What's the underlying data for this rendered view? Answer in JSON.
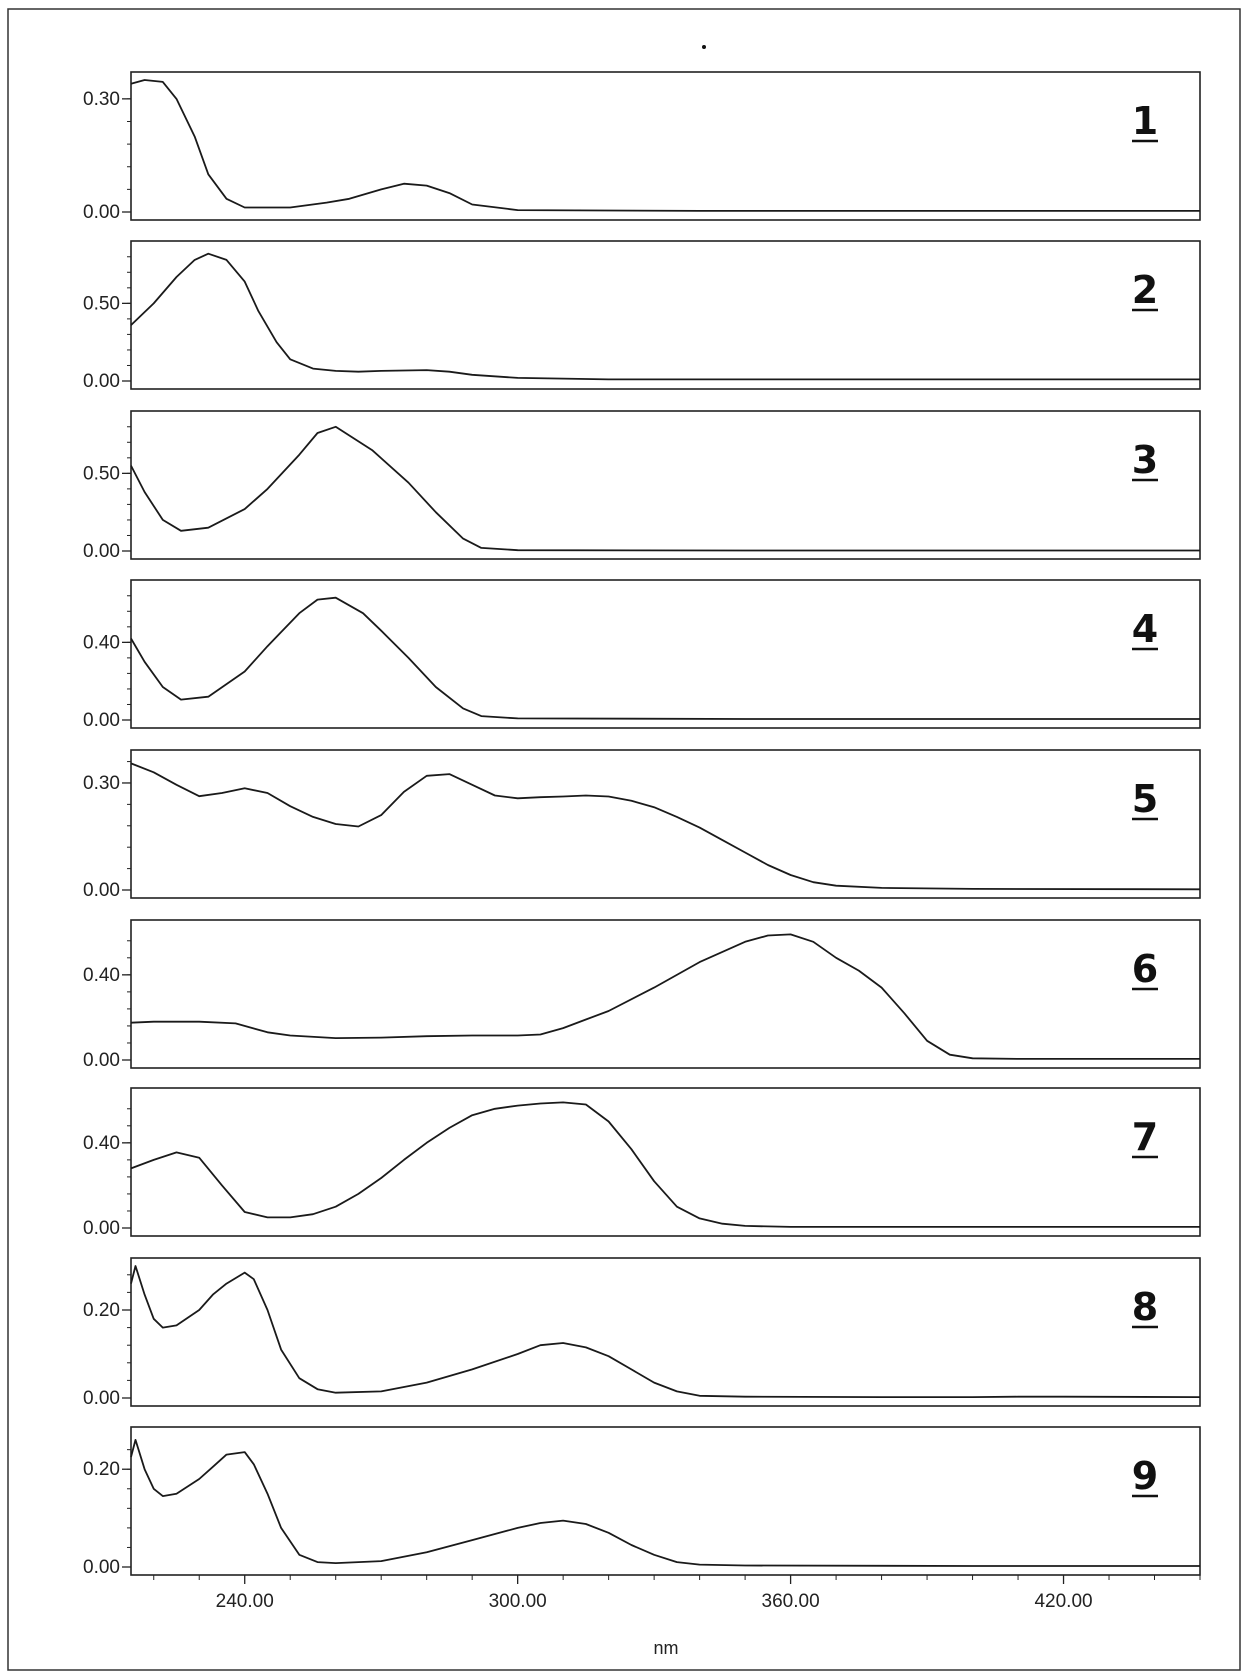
{
  "chart_data": {
    "type": "line",
    "xlabel": "nm",
    "x_ticks": [
      240,
      300,
      360,
      420
    ],
    "x_tick_labels": [
      "240.00",
      "300.00",
      "360.00",
      "420.00"
    ],
    "xlim": [
      215,
      450
    ],
    "grid": false,
    "panels": [
      {
        "label": "1",
        "ylim": [
          0,
          0.35
        ],
        "y_ticks": [
          0,
          0.3
        ],
        "y_tick_labels": [
          "0.00",
          "0.30"
        ],
        "x": [
          215,
          218,
          222,
          225,
          229,
          232,
          236,
          240,
          250,
          258,
          263,
          270,
          275,
          280,
          285,
          290,
          300,
          340,
          400,
          450
        ],
        "y": [
          0.34,
          0.35,
          0.345,
          0.3,
          0.2,
          0.1,
          0.035,
          0.012,
          0.012,
          0.025,
          0.035,
          0.06,
          0.075,
          0.07,
          0.05,
          0.02,
          0.005,
          0.003,
          0.003,
          0.003
        ]
      },
      {
        "label": "2",
        "ylim": [
          0,
          0.85
        ],
        "y_ticks": [
          0,
          0.5
        ],
        "y_tick_labels": [
          "0.00",
          "0.50"
        ],
        "x": [
          215,
          220,
          225,
          229,
          232,
          236,
          240,
          243,
          247,
          250,
          255,
          260,
          265,
          270,
          280,
          285,
          290,
          300,
          320,
          400,
          450
        ],
        "y": [
          0.36,
          0.5,
          0.67,
          0.78,
          0.82,
          0.78,
          0.64,
          0.45,
          0.25,
          0.14,
          0.08,
          0.065,
          0.06,
          0.065,
          0.07,
          0.06,
          0.04,
          0.02,
          0.01,
          0.01,
          0.01
        ]
      },
      {
        "label": "3",
        "ylim": [
          0,
          0.85
        ],
        "y_ticks": [
          0,
          0.5
        ],
        "y_tick_labels": [
          "0.00",
          "0.50"
        ],
        "x": [
          215,
          218,
          222,
          226,
          232,
          240,
          245,
          252,
          256,
          260,
          268,
          276,
          282,
          288,
          292,
          300,
          350,
          450
        ],
        "y": [
          0.55,
          0.38,
          0.2,
          0.13,
          0.15,
          0.27,
          0.4,
          0.62,
          0.76,
          0.8,
          0.65,
          0.44,
          0.25,
          0.08,
          0.02,
          0.005,
          0.003,
          0.003
        ]
      },
      {
        "label": "4",
        "ylim": [
          0,
          0.68
        ],
        "y_ticks": [
          0,
          0.4
        ],
        "y_tick_labels": [
          "0.00",
          "0.40"
        ],
        "x": [
          215,
          218,
          222,
          226,
          232,
          240,
          245,
          252,
          256,
          260,
          266,
          270,
          276,
          282,
          288,
          292,
          300,
          350,
          450
        ],
        "y": [
          0.42,
          0.3,
          0.17,
          0.105,
          0.12,
          0.25,
          0.38,
          0.55,
          0.62,
          0.63,
          0.55,
          0.46,
          0.32,
          0.17,
          0.06,
          0.02,
          0.008,
          0.005,
          0.005
        ]
      },
      {
        "label": "5",
        "ylim": [
          0,
          0.37
        ],
        "y_ticks": [
          0,
          0.3
        ],
        "y_tick_labels": [
          "0.00",
          "0.30"
        ],
        "x": [
          215,
          220,
          225,
          230,
          235,
          240,
          245,
          250,
          255,
          260,
          265,
          270,
          275,
          280,
          285,
          290,
          295,
          300,
          305,
          310,
          315,
          320,
          325,
          330,
          335,
          340,
          345,
          350,
          355,
          360,
          365,
          370,
          380,
          400,
          450
        ],
        "y": [
          0.355,
          0.33,
          0.295,
          0.263,
          0.272,
          0.285,
          0.272,
          0.235,
          0.205,
          0.185,
          0.178,
          0.21,
          0.275,
          0.32,
          0.325,
          0.295,
          0.265,
          0.257,
          0.26,
          0.262,
          0.265,
          0.262,
          0.25,
          0.232,
          0.205,
          0.175,
          0.14,
          0.105,
          0.07,
          0.042,
          0.022,
          0.012,
          0.006,
          0.003,
          0.002
        ]
      },
      {
        "label": "6",
        "ylim": [
          0,
          0.62
        ],
        "y_ticks": [
          0,
          0.4
        ],
        "y_tick_labels": [
          "0.00",
          "0.40"
        ],
        "x": [
          215,
          220,
          230,
          238,
          245,
          250,
          260,
          270,
          280,
          290,
          300,
          305,
          310,
          315,
          320,
          330,
          340,
          350,
          355,
          360,
          365,
          370,
          375,
          380,
          385,
          390,
          395,
          400,
          410,
          450
        ],
        "y": [
          0.175,
          0.18,
          0.18,
          0.172,
          0.13,
          0.115,
          0.103,
          0.105,
          0.112,
          0.115,
          0.115,
          0.12,
          0.15,
          0.19,
          0.23,
          0.34,
          0.46,
          0.555,
          0.585,
          0.59,
          0.555,
          0.48,
          0.42,
          0.34,
          0.22,
          0.09,
          0.025,
          0.008,
          0.005,
          0.005
        ]
      },
      {
        "label": "7",
        "ylim": [
          0,
          0.62
        ],
        "y_ticks": [
          0,
          0.4
        ],
        "y_tick_labels": [
          "0.00",
          "0.40"
        ],
        "x": [
          215,
          220,
          225,
          230,
          235,
          240,
          245,
          250,
          255,
          260,
          265,
          270,
          275,
          280,
          285,
          290,
          295,
          300,
          305,
          310,
          315,
          320,
          325,
          330,
          335,
          340,
          345,
          350,
          360,
          400,
          450
        ],
        "y": [
          0.28,
          0.32,
          0.355,
          0.33,
          0.2,
          0.075,
          0.05,
          0.05,
          0.065,
          0.1,
          0.16,
          0.235,
          0.32,
          0.4,
          0.47,
          0.53,
          0.56,
          0.575,
          0.585,
          0.59,
          0.58,
          0.5,
          0.37,
          0.22,
          0.1,
          0.045,
          0.02,
          0.01,
          0.005,
          0.005,
          0.005
        ]
      },
      {
        "label": "8",
        "ylim": [
          0,
          0.3
        ],
        "y_ticks": [
          0,
          0.2
        ],
        "y_tick_labels": [
          "0.00",
          "0.20"
        ],
        "x": [
          215,
          216,
          218,
          220,
          222,
          225,
          230,
          233,
          236,
          240,
          242,
          245,
          248,
          252,
          256,
          260,
          270,
          280,
          290,
          300,
          305,
          310,
          315,
          320,
          325,
          330,
          335,
          340,
          350,
          380,
          400,
          410,
          420,
          450
        ],
        "y": [
          0.26,
          0.3,
          0.235,
          0.18,
          0.16,
          0.165,
          0.2,
          0.235,
          0.26,
          0.285,
          0.27,
          0.2,
          0.11,
          0.045,
          0.02,
          0.012,
          0.015,
          0.035,
          0.065,
          0.1,
          0.12,
          0.125,
          0.115,
          0.095,
          0.065,
          0.035,
          0.015,
          0.005,
          0.003,
          0.002,
          0.002,
          0.003,
          0.003,
          0.002
        ]
      },
      {
        "label": "9",
        "ylim": [
          0,
          0.27
        ],
        "y_ticks": [
          0,
          0.2
        ],
        "y_tick_labels": [
          "0.00",
          "0.20"
        ],
        "x": [
          215,
          216,
          218,
          220,
          222,
          225,
          230,
          233,
          236,
          240,
          242,
          245,
          248,
          252,
          256,
          260,
          270,
          280,
          290,
          300,
          305,
          310,
          315,
          320,
          325,
          330,
          335,
          340,
          350,
          400,
          450
        ],
        "y": [
          0.225,
          0.26,
          0.2,
          0.16,
          0.145,
          0.15,
          0.18,
          0.205,
          0.23,
          0.235,
          0.21,
          0.15,
          0.08,
          0.025,
          0.01,
          0.008,
          0.012,
          0.03,
          0.055,
          0.08,
          0.09,
          0.095,
          0.088,
          0.07,
          0.045,
          0.025,
          0.01,
          0.005,
          0.003,
          0.002,
          0.002
        ]
      }
    ]
  }
}
